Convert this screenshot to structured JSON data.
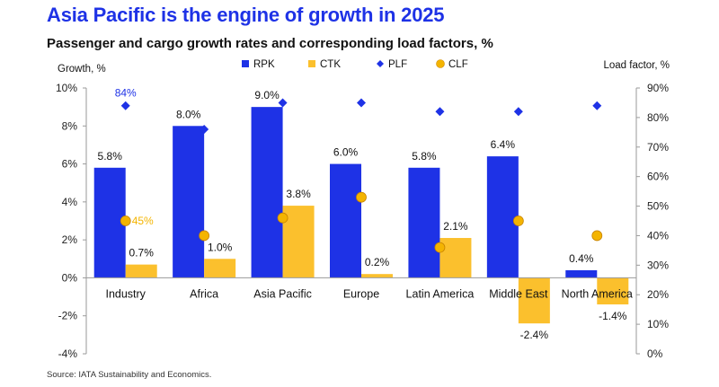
{
  "title": "Asia Pacific is the engine of growth in 2025",
  "subtitle": "Passenger and cargo growth rates and corresponding load factors, %",
  "source": "Source: IATA Sustainability and Economics.",
  "colors": {
    "title": "#1e32e6",
    "rpk": "#1e32e6",
    "ctk": "#fbc02d",
    "plf": "#1e32e6",
    "clf": "#f4b400"
  },
  "chart_data": {
    "type": "bar",
    "categories": [
      "Industry",
      "Africa",
      "Asia Pacific",
      "Europe",
      "Latin America",
      "Middle East",
      "North America"
    ],
    "ylabel": "Growth, %",
    "y2label": "Load factor, %",
    "ylim": [
      -4,
      10
    ],
    "y2lim": [
      0,
      90
    ],
    "yticks": [
      "-4%",
      "-2%",
      "0%",
      "2%",
      "4%",
      "6%",
      "8%",
      "10%"
    ],
    "y2ticks": [
      "0%",
      "10%",
      "20%",
      "30%",
      "40%",
      "50%",
      "60%",
      "70%",
      "80%",
      "90%"
    ],
    "legend_position": "top",
    "series": [
      {
        "name": "RPK",
        "kind": "bar",
        "axis": "left",
        "values": [
          5.8,
          8.0,
          9.0,
          6.0,
          5.8,
          6.4,
          0.4
        ],
        "labels": [
          "5.8%",
          "8.0%",
          "9.0%",
          "6.0%",
          "5.8%",
          "6.4%",
          "0.4%"
        ]
      },
      {
        "name": "CTK",
        "kind": "bar",
        "axis": "left",
        "values": [
          0.7,
          1.0,
          3.8,
          0.2,
          2.1,
          -2.4,
          -1.4
        ],
        "labels": [
          "0.7%",
          "1.0%",
          "3.8%",
          "0.2%",
          "2.1%",
          "-2.4%",
          "-1.4%"
        ]
      },
      {
        "name": "PLF",
        "kind": "marker",
        "axis": "right",
        "values": [
          84,
          76,
          85,
          85,
          82,
          82,
          84
        ]
      },
      {
        "name": "CLF",
        "kind": "marker",
        "axis": "right",
        "values": [
          45,
          40,
          46,
          53,
          36,
          45,
          40
        ]
      }
    ],
    "annotations": [
      {
        "series": "PLF",
        "category": "Industry",
        "text": "84%"
      },
      {
        "series": "CLF",
        "category": "Industry",
        "text": "45%"
      }
    ]
  }
}
